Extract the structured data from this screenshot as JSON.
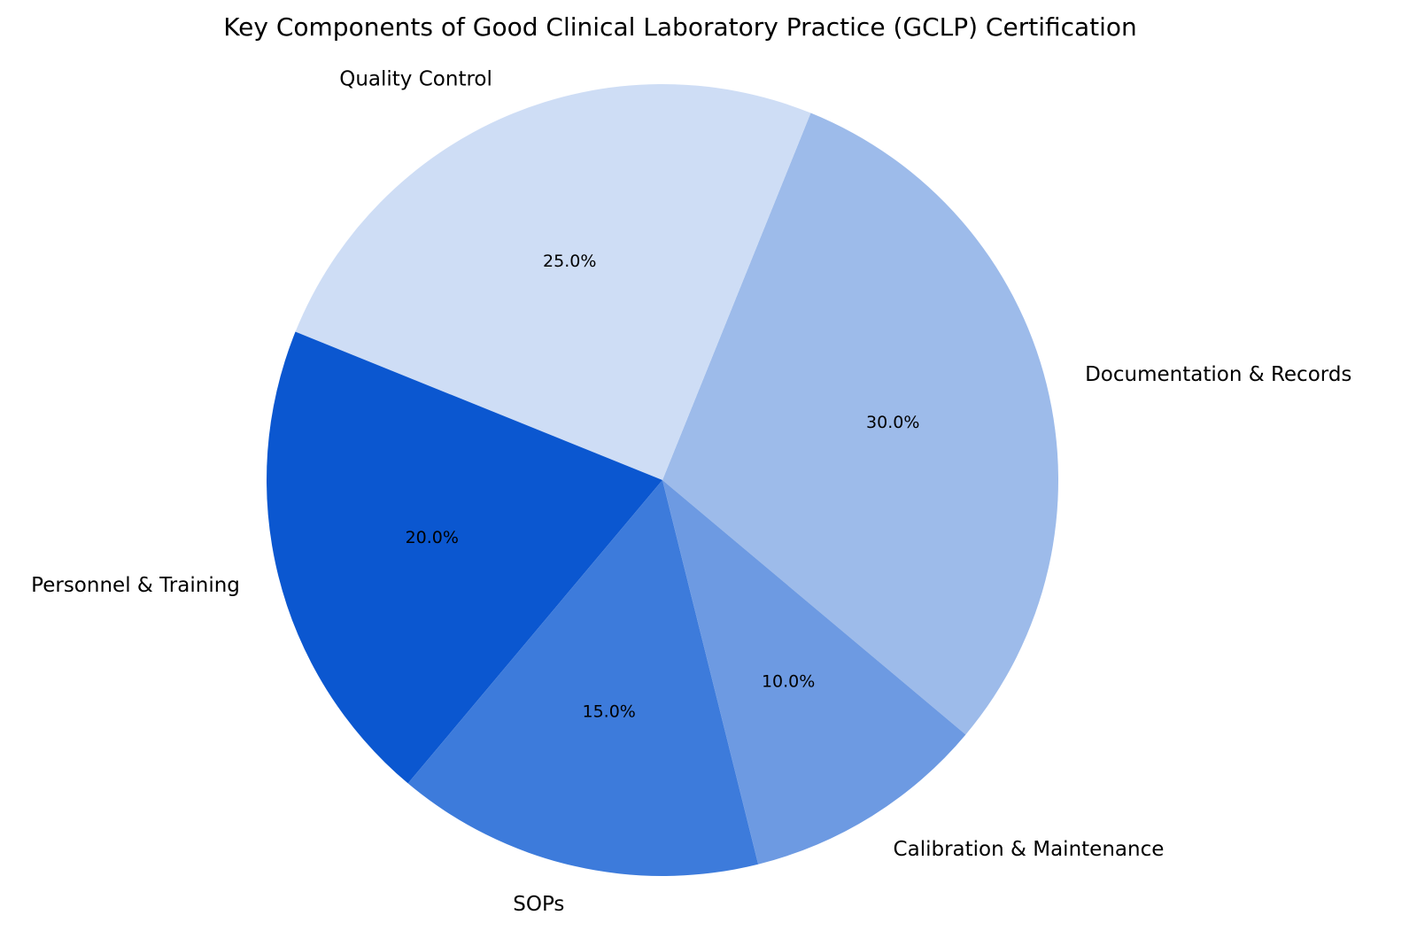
{
  "chart_data": {
    "type": "pie",
    "title": "Key Components of Good Clinical Laboratory Practice (GCLP) Certification",
    "slices": [
      {
        "label": "Documentation & Records",
        "value": 30.0,
        "percent_label": "30.0%",
        "color": "#9DBBEA"
      },
      {
        "label": "Quality Control",
        "value": 25.0,
        "percent_label": "25.0%",
        "color": "#CEDDF5"
      },
      {
        "label": "Personnel & Training",
        "value": 20.0,
        "percent_label": "20.0%",
        "color": "#0B57D0"
      },
      {
        "label": "SOPs",
        "value": 15.0,
        "percent_label": "15.0%",
        "color": "#3D7BDB"
      },
      {
        "label": "Calibration & Maintenance",
        "value": 10.0,
        "percent_label": "10.0%",
        "color": "#6D9AE2"
      }
    ],
    "start_angle_deg": -40,
    "direction": "counterclockwise",
    "legend": "none"
  }
}
